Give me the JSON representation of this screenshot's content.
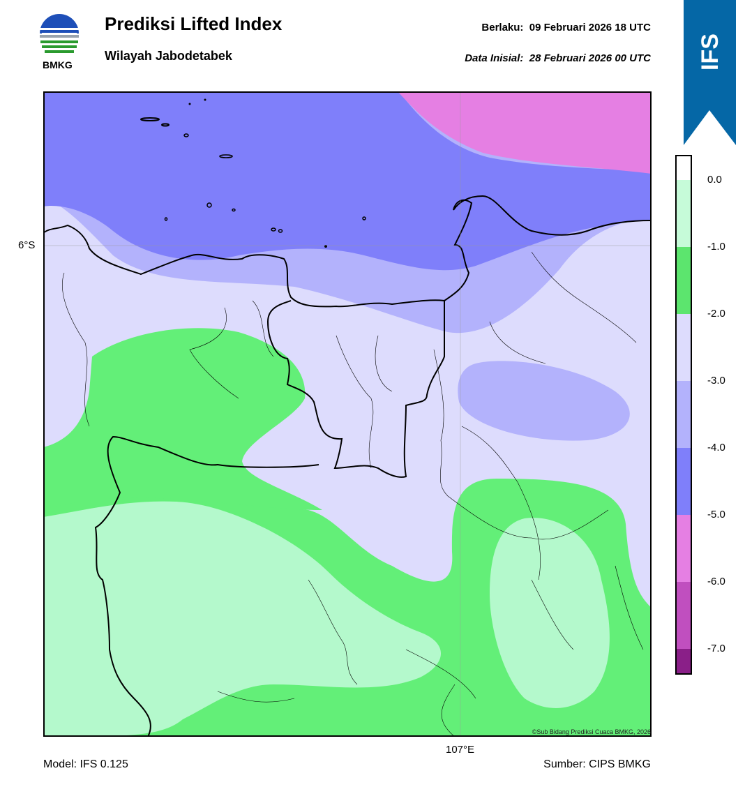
{
  "header": {
    "title": "Prediksi Lifted Index",
    "subtitle": "Wilayah Jabodetabek",
    "valid_label": "Berlaku:  09 Februari 2026 18 UTC",
    "init_label": "Data Inisial:  28 Februari 2026 00 UTC"
  },
  "logo": {
    "text": "BMKG"
  },
  "badge": {
    "text": "IFS",
    "color": "#0567a6"
  },
  "map": {
    "lat_label": "6°S",
    "lon_label": "107°E",
    "credit": "©Sub Bidang Prediksi Cuaca BMKG, 2026",
    "grid": true
  },
  "colorbar": {
    "ticks": [
      "0.0",
      "-1.0",
      "-2.0",
      "-3.0",
      "-4.0",
      "-5.0",
      "-6.0",
      "-7.0"
    ],
    "bins": [
      {
        "range": "0 to -1",
        "color": "#c6fbd9"
      },
      {
        "range": "-1 to -2",
        "color": "#5ce56e"
      },
      {
        "range": "-2 to -3",
        "color": "#dddcfd"
      },
      {
        "range": "-3 to -4",
        "color": "#b3b2fc"
      },
      {
        "range": "-4 to -5",
        "color": "#7f7ffa"
      },
      {
        "range": "-5 to -6",
        "color": "#e57fe3"
      },
      {
        "range": "-6 to -7",
        "color": "#c04fbf"
      },
      {
        "range": "-7 to -8",
        "color": "#8a1f88"
      }
    ]
  },
  "footer": {
    "model": "Model: IFS 0.125",
    "source": "Sumber: CIPS BMKG"
  }
}
